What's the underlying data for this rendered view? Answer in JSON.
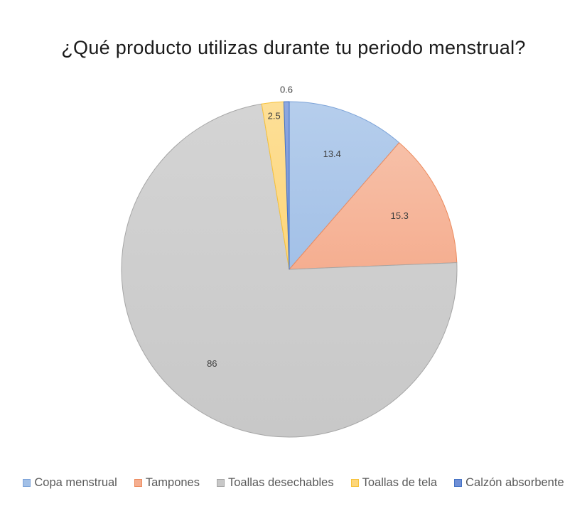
{
  "chart_data": {
    "type": "pie",
    "title": "¿Qué producto utilizas durante tu periodo menstrual?",
    "categories": [
      "Copa menstrual",
      "Tampones",
      "Toallas desechables",
      "Toallas de tela",
      "Calzón absorbente"
    ],
    "values": [
      13.4,
      15.3,
      86,
      2.5,
      0.6
    ],
    "data_labels": [
      "13.4",
      "15.3",
      "86",
      "2.5",
      "0.6"
    ],
    "colors": [
      "#a2c0e7",
      "#f5ae90",
      "#c8c8c8",
      "#fdd67a",
      "#6f8fd6"
    ],
    "border_colors": [
      "#7ca3d8",
      "#ec8b5e",
      "#a6a6a6",
      "#f7c23b",
      "#4472c4"
    ],
    "start_angle_deg": 0,
    "direction": "clockwise",
    "legend_position": "bottom"
  }
}
